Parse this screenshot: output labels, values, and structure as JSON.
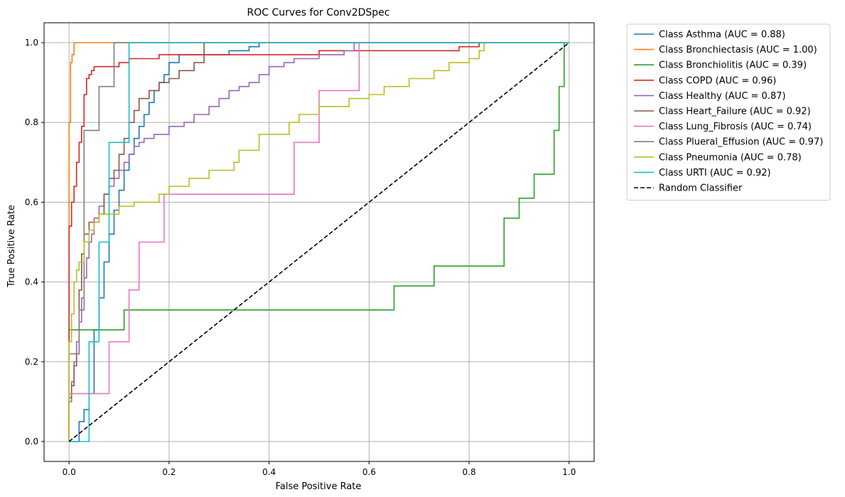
{
  "chart_data": {
    "type": "line",
    "title": "ROC Curves for Conv2DSpec",
    "xlabel": "False Positive Rate",
    "ylabel": "True Positive Rate",
    "xlim": [
      -0.05,
      1.05
    ],
    "ylim": [
      -0.05,
      1.05
    ],
    "xticks": [
      "0.0",
      "0.2",
      "0.4",
      "0.6",
      "0.8",
      "1.0"
    ],
    "yticks": [
      "0.0",
      "0.2",
      "0.4",
      "0.6",
      "0.8",
      "1.0"
    ],
    "grid": true,
    "legend_position": "outside-upper-right",
    "series": [
      {
        "name": "Class Asthma (AUC = 0.88)",
        "color": "#1f77b4",
        "x": [
          0,
          0.02,
          0.02,
          0.03,
          0.04,
          0.05,
          0.05,
          0.06,
          0.07,
          0.08,
          0.09,
          0.1,
          0.11,
          0.12,
          0.13,
          0.14,
          0.15,
          0.16,
          0.17,
          0.18,
          0.19,
          0.2,
          0.22,
          0.24,
          0.27,
          0.32,
          0.36,
          0.38,
          0.38,
          0.6,
          1.0
        ],
        "y": [
          0,
          0,
          0.02,
          0.05,
          0.08,
          0.12,
          0.2,
          0.28,
          0.36,
          0.45,
          0.52,
          0.58,
          0.63,
          0.68,
          0.72,
          0.76,
          0.79,
          0.82,
          0.85,
          0.88,
          0.9,
          0.92,
          0.95,
          0.97,
          0.97,
          0.97,
          0.98,
          0.99,
          1.0,
          1.0,
          1.0
        ]
      },
      {
        "name": "Class Bronchiectasis (AUC = 1.00)",
        "color": "#ff7f0e",
        "x": [
          0,
          0,
          0.003,
          0.006,
          0.01,
          0.01,
          1.0
        ],
        "y": [
          0,
          0.78,
          0.8,
          0.95,
          0.97,
          1.0,
          1.0
        ]
      },
      {
        "name": "Class Bronchiolitis (AUC = 0.39)",
        "color": "#2ca02c",
        "x": [
          0,
          0,
          0.01,
          0.11,
          0.11,
          0.65,
          0.65,
          0.73,
          0.73,
          0.87,
          0.87,
          0.9,
          0.9,
          0.93,
          0.93,
          0.97,
          0.97,
          0.98,
          0.98,
          0.99,
          0.99,
          1.0
        ],
        "y": [
          0,
          0.23,
          0.28,
          0.28,
          0.33,
          0.33,
          0.39,
          0.39,
          0.44,
          0.44,
          0.56,
          0.56,
          0.61,
          0.61,
          0.67,
          0.67,
          0.78,
          0.78,
          0.83,
          0.89,
          0.94,
          1.0
        ]
      },
      {
        "name": "Class COPD (AUC = 0.96)",
        "color": "#d62728",
        "x": [
          0,
          0,
          0.005,
          0.01,
          0.01,
          0.015,
          0.02,
          0.025,
          0.03,
          0.035,
          0.04,
          0.045,
          0.05,
          0.055,
          0.06,
          0.07,
          0.1,
          0.12,
          0.14,
          0.18,
          0.22,
          0.28,
          0.35,
          0.5,
          0.62,
          0.78,
          0.8,
          0.82,
          0.85
        ],
        "y": [
          0,
          0.53,
          0.54,
          0.6,
          0.62,
          0.64,
          0.7,
          0.75,
          0.79,
          0.87,
          0.91,
          0.92,
          0.93,
          0.94,
          0.94,
          0.94,
          0.94,
          0.95,
          0.96,
          0.96,
          0.97,
          0.97,
          0.97,
          0.97,
          0.98,
          0.98,
          0.99,
          0.99,
          1.0
        ]
      },
      {
        "name": "Class Healthy (AUC = 0.87)",
        "color": "#9467bd",
        "x": [
          0,
          0.005,
          0.01,
          0.015,
          0.02,
          0.025,
          0.03,
          0.035,
          0.04,
          0.045,
          0.05,
          0.06,
          0.07,
          0.08,
          0.09,
          0.1,
          0.11,
          0.12,
          0.13,
          0.14,
          0.15,
          0.17,
          0.2,
          0.23,
          0.25,
          0.28,
          0.3,
          0.32,
          0.34,
          0.36,
          0.38,
          0.4,
          0.43,
          0.45,
          0.5,
          0.55,
          0.57,
          0.6
        ],
        "y": [
          0,
          0.1,
          0.15,
          0.2,
          0.25,
          0.3,
          0.36,
          0.41,
          0.46,
          0.5,
          0.52,
          0.56,
          0.59,
          0.62,
          0.64,
          0.66,
          0.68,
          0.7,
          0.72,
          0.74,
          0.75,
          0.76,
          0.77,
          0.79,
          0.8,
          0.82,
          0.84,
          0.86,
          0.88,
          0.89,
          0.9,
          0.92,
          0.94,
          0.95,
          0.96,
          0.97,
          0.98,
          1.0
        ]
      },
      {
        "name": "Class Heart_Failure (AUC = 0.92)",
        "color": "#8c564b",
        "x": [
          0,
          0.005,
          0.01,
          0.015,
          0.02,
          0.025,
          0.03,
          0.04,
          0.06,
          0.07,
          0.08,
          0.09,
          0.1,
          0.11,
          0.12,
          0.13,
          0.14,
          0.16,
          0.18,
          0.2,
          0.22,
          0.25,
          0.27,
          0.28
        ],
        "y": [
          0,
          0.11,
          0.14,
          0.19,
          0.22,
          0.38,
          0.47,
          0.52,
          0.55,
          0.57,
          0.62,
          0.66,
          0.68,
          0.72,
          0.76,
          0.8,
          0.83,
          0.86,
          0.88,
          0.9,
          0.91,
          0.93,
          0.95,
          1.0
        ]
      },
      {
        "name": "Class Lung_Fibrosis (AUC = 0.74)",
        "color": "#e377c2",
        "x": [
          0,
          0.01,
          0.01,
          0.08,
          0.08,
          0.12,
          0.12,
          0.14,
          0.14,
          0.19,
          0.19,
          0.45,
          0.45,
          0.5,
          0.5,
          0.58,
          0.58,
          1.0
        ],
        "y": [
          0,
          0.12,
          0.12,
          0.12,
          0.25,
          0.25,
          0.38,
          0.38,
          0.5,
          0.5,
          0.62,
          0.62,
          0.75,
          0.75,
          0.88,
          0.88,
          1.0,
          1.0
        ]
      },
      {
        "name": "Class Plueral_Effusion (AUC = 0.97)",
        "color": "#7f7f7f",
        "x": [
          0,
          0,
          0.02,
          0.02,
          0.03,
          0.03,
          0.06,
          0.06,
          0.09,
          0.09,
          1.0
        ],
        "y": [
          0,
          0.22,
          0.22,
          0.33,
          0.33,
          0.78,
          0.78,
          0.89,
          0.89,
          1.0,
          1.0
        ]
      },
      {
        "name": "Class Pneumonia (AUC = 0.78)",
        "color": "#bcbd22",
        "x": [
          0,
          0.005,
          0.01,
          0.015,
          0.02,
          0.03,
          0.04,
          0.05,
          0.06,
          0.08,
          0.1,
          0.13,
          0.18,
          0.2,
          0.24,
          0.28,
          0.33,
          0.34,
          0.38,
          0.44,
          0.46,
          0.5,
          0.56,
          0.6,
          0.63,
          0.68,
          0.73,
          0.76,
          0.8,
          0.82,
          0.83,
          0.86,
          1.0
        ],
        "y": [
          0,
          0.25,
          0.32,
          0.4,
          0.43,
          0.45,
          0.5,
          0.53,
          0.55,
          0.57,
          0.57,
          0.59,
          0.6,
          0.62,
          0.64,
          0.66,
          0.68,
          0.7,
          0.73,
          0.77,
          0.8,
          0.82,
          0.84,
          0.86,
          0.87,
          0.89,
          0.91,
          0.93,
          0.95,
          0.96,
          0.98,
          1.0,
          1.0
        ]
      },
      {
        "name": "Class URTI (AUC = 0.92)",
        "color": "#17becf",
        "x": [
          0,
          0.04,
          0.04,
          0.06,
          0.06,
          0.08,
          0.08,
          0.12,
          0.12,
          1.0
        ],
        "y": [
          0,
          0,
          0.25,
          0.25,
          0.5,
          0.5,
          0.75,
          0.75,
          1.0,
          1.0
        ]
      },
      {
        "name": "Random Classifier",
        "color": "#000000",
        "dashed": true,
        "x": [
          0,
          1
        ],
        "y": [
          0,
          1
        ]
      }
    ]
  }
}
